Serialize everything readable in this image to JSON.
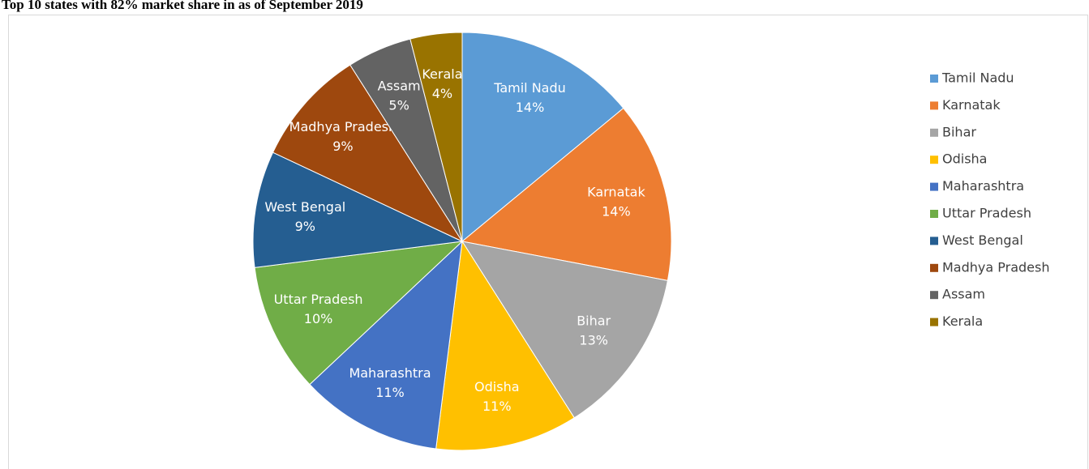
{
  "chart_data": {
    "type": "pie",
    "title": "Top 10 states with 82% market share in as of September 2019",
    "categories": [
      "Tamil Nadu",
      "Karnatak",
      "Bihar",
      "Odisha",
      "Maharashtra",
      "Uttar Pradesh",
      "West Bengal",
      "Madhya Pradesh",
      "Assam",
      "Kerala"
    ],
    "values": [
      14,
      14,
      13,
      11,
      11,
      10,
      9,
      9,
      5,
      4
    ],
    "value_labels": [
      "14%",
      "14%",
      "13%",
      "11%",
      "11%",
      "10%",
      "9%",
      "9%",
      "5%",
      "4%"
    ],
    "colors": [
      "#5b9bd5",
      "#ed7d31",
      "#a5a5a5",
      "#ffc000",
      "#4472c4",
      "#70ad47",
      "#255e91",
      "#9e480e",
      "#636363",
      "#997300"
    ],
    "legend": "right"
  }
}
